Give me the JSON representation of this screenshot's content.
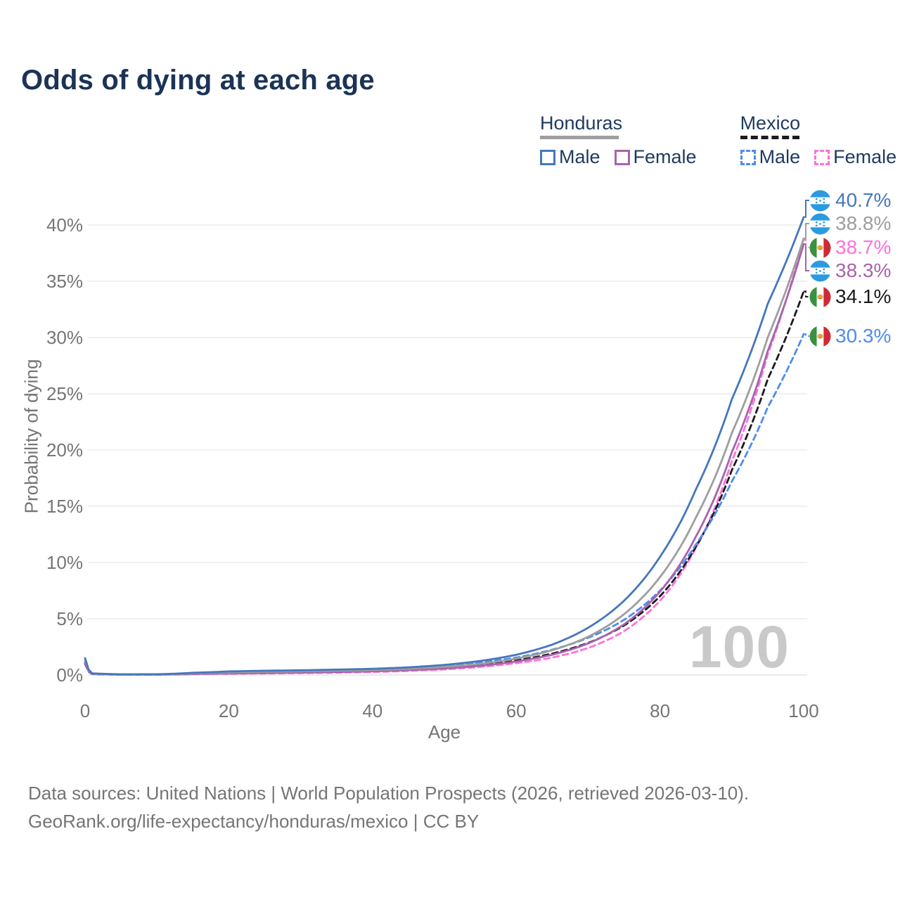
{
  "title": "Odds of dying at each age",
  "watermark": "100",
  "footer": {
    "line1": "Data sources: United Nations | World Population Prospects (2026, retrieved 2026-03-10).",
    "line2": "GeoRank.org/life-expectancy/honduras/mexico | CC BY"
  },
  "legend": {
    "groups": [
      {
        "name": "Honduras",
        "line_style": "solid",
        "underline_color": "#9e9e9e",
        "items": [
          {
            "label": "Male",
            "color": "#4577bd"
          },
          {
            "label": "Female",
            "color": "#a763ad"
          }
        ]
      },
      {
        "name": "Mexico",
        "line_style": "dashed",
        "underline_color": "#1b1b1b",
        "items": [
          {
            "label": "Male",
            "color": "#4d8bf0"
          },
          {
            "label": "Female",
            "color": "#ff70dc"
          }
        ]
      }
    ]
  },
  "chart_data": {
    "type": "line",
    "title": "Odds of dying at each age",
    "xlabel": "Age",
    "ylabel": "Probability of dying",
    "xlim": [
      0,
      100
    ],
    "ylim_pct": [
      0,
      42
    ],
    "x_ticks": [
      0,
      20,
      40,
      60,
      80,
      100
    ],
    "y_ticks_pct": [
      0,
      5,
      10,
      15,
      20,
      25,
      30,
      35,
      40
    ],
    "y_tick_labels": [
      "0%",
      "5%",
      "10%",
      "15%",
      "20%",
      "25%",
      "30%",
      "35%",
      "40%"
    ],
    "grid": "horizontal-only",
    "legend_position": "top-right",
    "ages": [
      0,
      1,
      5,
      10,
      15,
      20,
      25,
      30,
      35,
      40,
      45,
      50,
      55,
      60,
      65,
      70,
      75,
      80,
      85,
      90,
      95,
      100
    ],
    "series": [
      {
        "name": "Mexico Female",
        "country": "Mexico",
        "flag": "mexico-flag",
        "color": "#ff70dc",
        "dash": "dashed",
        "end_label": "38.7%",
        "values_pct": [
          0.95,
          0.08,
          0.03,
          0.03,
          0.07,
          0.11,
          0.14,
          0.17,
          0.21,
          0.27,
          0.36,
          0.5,
          0.72,
          1.05,
          1.55,
          2.4,
          3.9,
          6.6,
          11.3,
          19.0,
          28.5,
          38.7
        ]
      },
      {
        "name": "Mexico (both sexes)",
        "country": "Mexico",
        "flag": "mexico-flag",
        "color": "#1b1b1b",
        "dash": "dashed",
        "end_label": "34.1%",
        "values_pct": [
          1.05,
          0.09,
          0.035,
          0.04,
          0.11,
          0.19,
          0.24,
          0.28,
          0.33,
          0.4,
          0.5,
          0.66,
          0.92,
          1.3,
          1.9,
          2.85,
          4.4,
          7.0,
          11.4,
          18.2,
          26.3,
          34.1
        ]
      },
      {
        "name": "Mexico Male",
        "country": "Mexico",
        "flag": "mexico-flag",
        "color": "#4d8bf0",
        "dash": "dashed",
        "end_label": "30.3%",
        "values_pct": [
          1.15,
          0.1,
          0.04,
          0.05,
          0.16,
          0.28,
          0.35,
          0.4,
          0.46,
          0.53,
          0.64,
          0.83,
          1.12,
          1.55,
          2.25,
          3.3,
          4.9,
          7.5,
          11.6,
          17.2,
          23.8,
          30.3
        ]
      },
      {
        "name": "Honduras Female",
        "country": "Honduras",
        "flag": "honduras-flag",
        "color": "#a763ad",
        "dash": "solid",
        "end_label": "38.3%",
        "values_pct": [
          1.1,
          0.1,
          0.04,
          0.04,
          0.09,
          0.14,
          0.17,
          0.21,
          0.26,
          0.33,
          0.43,
          0.58,
          0.82,
          1.2,
          1.8,
          2.8,
          4.5,
          7.4,
          12.3,
          19.8,
          28.8,
          38.3
        ]
      },
      {
        "name": "Honduras (both sexes)",
        "country": "Honduras",
        "flag": "honduras-flag",
        "color": "#9e9e9e",
        "dash": "solid",
        "end_label": "38.8%",
        "values_pct": [
          1.3,
          0.12,
          0.05,
          0.055,
          0.15,
          0.24,
          0.29,
          0.33,
          0.38,
          0.44,
          0.55,
          0.73,
          1.0,
          1.45,
          2.2,
          3.4,
          5.4,
          8.7,
          14.0,
          21.5,
          30.0,
          38.8
        ]
      },
      {
        "name": "Honduras Male",
        "country": "Honduras",
        "flag": "honduras-flag",
        "color": "#4577bd",
        "dash": "solid",
        "end_label": "40.7%",
        "values_pct": [
          1.5,
          0.15,
          0.06,
          0.07,
          0.2,
          0.32,
          0.38,
          0.42,
          0.48,
          0.55,
          0.68,
          0.9,
          1.25,
          1.8,
          2.7,
          4.2,
          6.6,
          10.5,
          16.5,
          24.5,
          33.0,
          40.7
        ]
      }
    ]
  }
}
